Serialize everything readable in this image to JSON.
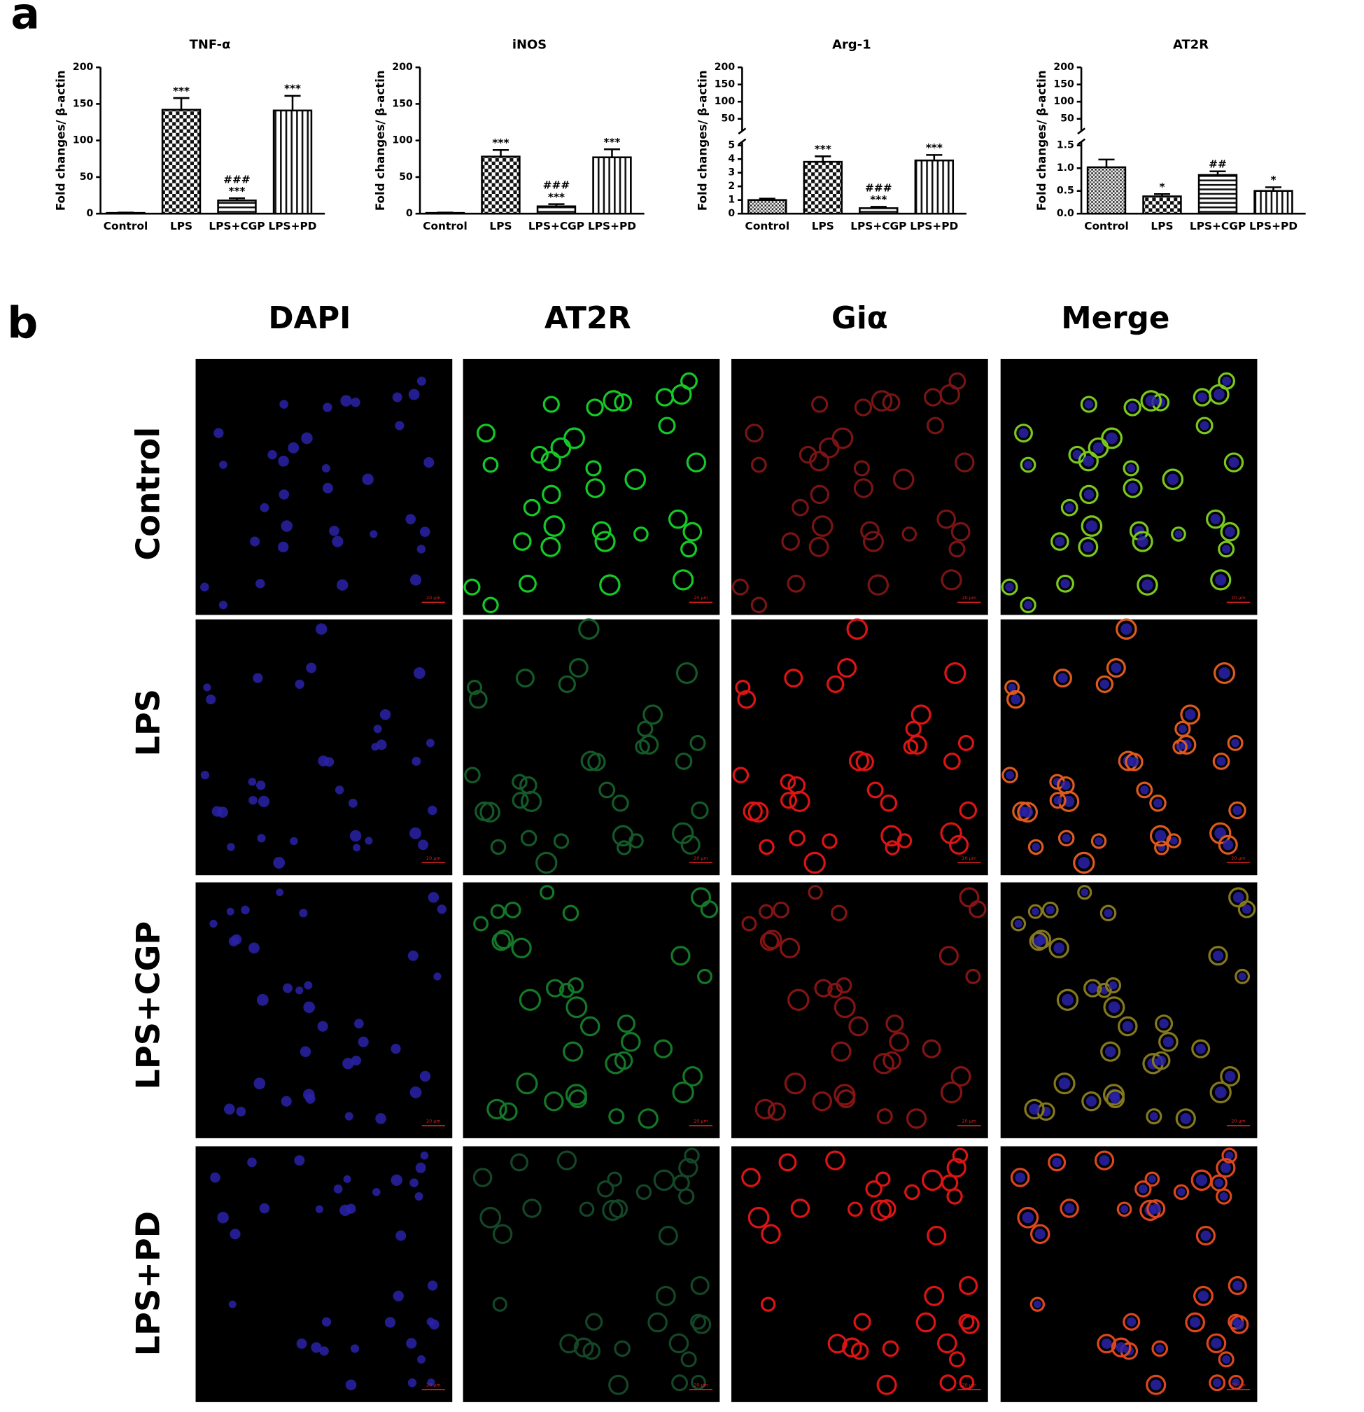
{
  "chart_data": [
    {
      "type": "bar",
      "title": "TNF-α",
      "y_label": "Fold changes/ β-actin",
      "categories": [
        "Control",
        "LPS",
        "LPS+CGP",
        "LPS+PD"
      ],
      "values": [
        1,
        142,
        18,
        141
      ],
      "errors": [
        0.5,
        16,
        3,
        20
      ],
      "annotations": [
        [],
        [
          "***"
        ],
        [
          "###",
          "***"
        ],
        [
          "***"
        ]
      ],
      "patterns": [
        "crosshatch",
        "checker",
        "horizontal",
        "vertical"
      ],
      "ylim": [
        0,
        200
      ],
      "yticks": [
        0,
        50,
        100,
        150,
        200
      ]
    },
    {
      "type": "bar",
      "title": "iNOS",
      "y_label": "Fold changes/ β-actin",
      "categories": [
        "Control",
        "LPS",
        "LPS+CGP",
        "LPS+PD"
      ],
      "values": [
        1,
        78,
        10,
        77
      ],
      "errors": [
        0.5,
        9,
        3,
        11
      ],
      "annotations": [
        [],
        [
          "***"
        ],
        [
          "###",
          "***"
        ],
        [
          "***"
        ]
      ],
      "patterns": [
        "crosshatch",
        "checker",
        "horizontal",
        "vertical"
      ],
      "ylim": [
        0,
        200
      ],
      "yticks": [
        0,
        50,
        100,
        150,
        200
      ]
    },
    {
      "type": "bar",
      "title": "Arg-1",
      "y_label": "Fold changes/ β-actin",
      "categories": [
        "Control",
        "LPS",
        "LPS+CGP",
        "LPS+PD"
      ],
      "values": [
        1.0,
        3.8,
        0.4,
        3.9
      ],
      "errors": [
        0.1,
        0.4,
        0.1,
        0.4
      ],
      "annotations": [
        [],
        [
          "***"
        ],
        [
          "###",
          "***"
        ],
        [
          "***"
        ]
      ],
      "patterns": [
        "crosshatch",
        "checker",
        "horizontal",
        "vertical"
      ],
      "ylim": [
        0,
        5
      ],
      "yticks": [
        0,
        1,
        2,
        3,
        4,
        5
      ],
      "ylim_upper": [
        30,
        200
      ],
      "yticks_upper": [
        50,
        100,
        150,
        200
      ]
    },
    {
      "type": "bar",
      "title": "AT2R",
      "y_label": "Fold changes/ β-actin",
      "categories": [
        "Control",
        "LPS",
        "LPS+CGP",
        "LPS+PD"
      ],
      "values": [
        1.02,
        0.38,
        0.85,
        0.5
      ],
      "errors": [
        0.17,
        0.05,
        0.08,
        0.08
      ],
      "annotations": [
        [],
        [
          "*"
        ],
        [
          "##"
        ],
        [
          "*"
        ]
      ],
      "patterns": [
        "crosshatch",
        "checker",
        "horizontal",
        "vertical"
      ],
      "ylim": [
        0,
        1.5
      ],
      "yticks": [
        {
          "value": 0,
          "label": "0.0"
        },
        {
          "value": 0.5,
          "label": "0.5"
        },
        {
          "value": 1,
          "label": "1.0"
        },
        {
          "value": 1.5,
          "label": "1.5"
        }
      ],
      "ylim_upper": [
        30,
        200
      ],
      "yticks_upper": [
        50,
        100,
        150,
        200
      ]
    }
  ],
  "figure": {
    "panel_labels": [
      "a",
      "b"
    ],
    "columns": [
      "DAPI",
      "AT2R",
      "Giα",
      "Merge"
    ],
    "rows": [
      "Control",
      "LPS",
      "LPS+CGP",
      "LPS+PD"
    ],
    "scale_bar_label": "20 μm"
  }
}
